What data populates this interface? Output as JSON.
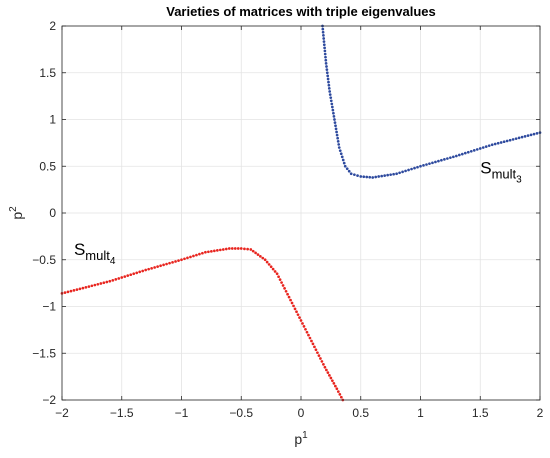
{
  "chart_data": {
    "type": "scatter",
    "title": "Varieties of matrices with triple eigenvalues",
    "xlabel": {
      "base": "p",
      "sup": "1"
    },
    "ylabel": {
      "base": "p",
      "sup": "2"
    },
    "xlim": [
      -2,
      2
    ],
    "ylim": [
      -2,
      2
    ],
    "xticks": [
      -2,
      -1.5,
      -1,
      -0.5,
      0,
      0.5,
      1,
      1.5,
      2
    ],
    "yticks": [
      -2,
      -1.5,
      -1,
      -0.5,
      0,
      0.5,
      1,
      1.5,
      2
    ],
    "xtick_labels": [
      "−2",
      "−1.5",
      "−1",
      "−0.5",
      "0",
      "0.5",
      "1",
      "1.5",
      "2"
    ],
    "ytick_labels": [
      "−2",
      "−1.5",
      "−1",
      "−0.5",
      "0",
      "0.5",
      "1",
      "1.5",
      "2"
    ],
    "grid": true,
    "series": [
      {
        "color": "#2e4a9e",
        "points": [
          [
            0.18,
            2.0
          ],
          [
            0.21,
            1.6
          ],
          [
            0.24,
            1.3
          ],
          [
            0.28,
            1.0
          ],
          [
            0.32,
            0.7
          ],
          [
            0.37,
            0.5
          ],
          [
            0.42,
            0.42
          ],
          [
            0.5,
            0.39
          ],
          [
            0.6,
            0.38
          ],
          [
            0.8,
            0.42
          ],
          [
            1.0,
            0.5
          ],
          [
            1.3,
            0.61
          ],
          [
            1.6,
            0.73
          ],
          [
            2.0,
            0.86
          ]
        ]
      },
      {
        "color": "#e8251f",
        "points": [
          [
            -2.0,
            -0.86
          ],
          [
            -1.6,
            -0.73
          ],
          [
            -1.3,
            -0.61
          ],
          [
            -1.0,
            -0.5
          ],
          [
            -0.8,
            -0.42
          ],
          [
            -0.6,
            -0.38
          ],
          [
            -0.5,
            -0.38
          ],
          [
            -0.42,
            -0.39
          ],
          [
            -0.3,
            -0.5
          ],
          [
            -0.2,
            -0.65
          ],
          [
            -0.1,
            -0.9
          ],
          [
            0.0,
            -1.15
          ],
          [
            0.1,
            -1.4
          ],
          [
            0.2,
            -1.65
          ],
          [
            0.3,
            -1.88
          ],
          [
            0.35,
            -2.0
          ]
        ]
      }
    ],
    "annotations": [
      {
        "base": "S",
        "sub_main": "mult",
        "sub_sub": "3",
        "x": 1.5,
        "y": 0.42
      },
      {
        "base": "S",
        "sub_main": "mult",
        "sub_sub": "4",
        "x": -1.9,
        "y": -0.45
      }
    ]
  }
}
